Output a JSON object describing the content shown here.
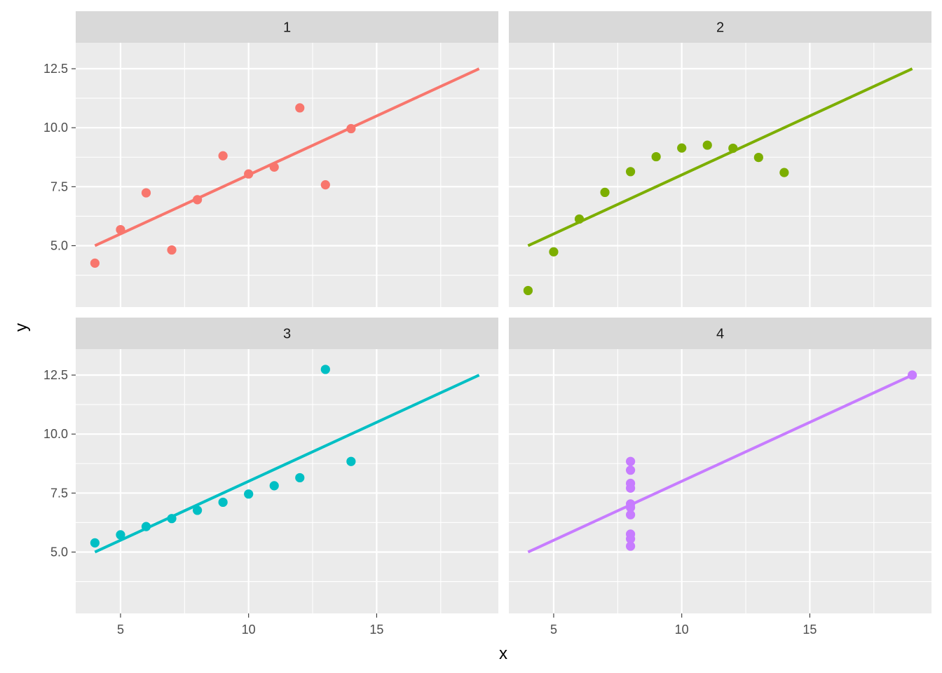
{
  "chart_data": {
    "type": "scatter",
    "layout": "facet_wrap 2x2",
    "xlabel": "x",
    "ylabel": "y",
    "xlim": [
      3.25,
      19.75
    ],
    "ylim": [
      2.4,
      13.6
    ],
    "x_ticks": [
      5,
      10,
      15
    ],
    "x_tick_labels": [
      "5",
      "10",
      "15"
    ],
    "y_ticks": [
      5.0,
      7.5,
      10.0,
      12.5
    ],
    "y_tick_labels": [
      "5.0",
      "7.5",
      "10.0",
      "12.5"
    ],
    "grid": true,
    "panel_background": "#ebebeb",
    "strip_background": "#d9d9d9",
    "fit_line": {
      "intercept": 3.0,
      "slope": 0.5,
      "x_range": [
        4,
        19
      ]
    },
    "panels": [
      {
        "label": "1",
        "color": "#F8766D",
        "points": [
          [
            10,
            8.04
          ],
          [
            8,
            6.95
          ],
          [
            13,
            7.58
          ],
          [
            9,
            8.81
          ],
          [
            11,
            8.33
          ],
          [
            14,
            9.96
          ],
          [
            6,
            7.24
          ],
          [
            4,
            4.26
          ],
          [
            12,
            10.84
          ],
          [
            7,
            4.82
          ],
          [
            5,
            5.68
          ]
        ]
      },
      {
        "label": "2",
        "color": "#7CAE00",
        "points": [
          [
            10,
            9.14
          ],
          [
            8,
            8.14
          ],
          [
            13,
            8.74
          ],
          [
            9,
            8.77
          ],
          [
            11,
            9.26
          ],
          [
            14,
            8.1
          ],
          [
            6,
            6.13
          ],
          [
            4,
            3.1
          ],
          [
            12,
            9.13
          ],
          [
            7,
            7.26
          ],
          [
            5,
            4.74
          ]
        ]
      },
      {
        "label": "3",
        "color": "#00BFC4",
        "points": [
          [
            10,
            7.46
          ],
          [
            8,
            6.77
          ],
          [
            13,
            12.74
          ],
          [
            9,
            7.11
          ],
          [
            11,
            7.81
          ],
          [
            14,
            8.84
          ],
          [
            6,
            6.08
          ],
          [
            4,
            5.39
          ],
          [
            12,
            8.15
          ],
          [
            7,
            6.42
          ],
          [
            5,
            5.73
          ]
        ]
      },
      {
        "label": "4",
        "color": "#C77CFF",
        "points": [
          [
            8,
            6.58
          ],
          [
            8,
            5.76
          ],
          [
            8,
            7.71
          ],
          [
            8,
            8.84
          ],
          [
            8,
            8.47
          ],
          [
            8,
            7.04
          ],
          [
            8,
            5.25
          ],
          [
            19,
            12.5
          ],
          [
            8,
            5.56
          ],
          [
            8,
            7.91
          ],
          [
            8,
            6.89
          ]
        ]
      }
    ]
  }
}
